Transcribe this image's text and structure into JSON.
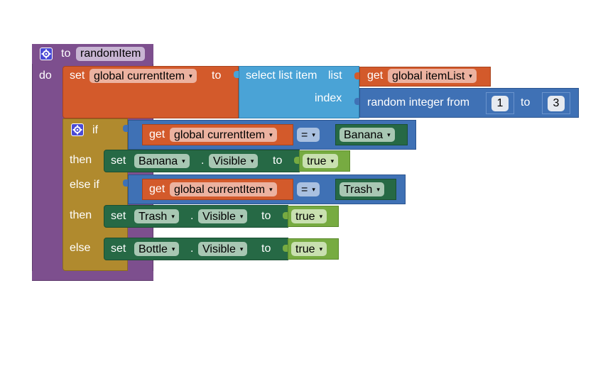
{
  "procedure": {
    "to_label": "to",
    "name": "randomItem",
    "do_label": "do"
  },
  "set_current": {
    "set_label": "set",
    "variable": "global currentItem",
    "to_label": "to"
  },
  "select_list": {
    "label": "select list item",
    "list_label": "list",
    "index_label": "index"
  },
  "get_item_list": {
    "get_label": "get",
    "variable": "global itemList"
  },
  "random_integer": {
    "label": "random integer from",
    "from_value": "1",
    "to_label": "to",
    "to_value": "3"
  },
  "if_block": {
    "if_label": "if",
    "then_label": "then",
    "else_if_label": "else if",
    "then2_label": "then",
    "else_label": "else"
  },
  "cond1": {
    "get_label": "get",
    "variable": "global currentItem",
    "op": "=",
    "value": "Banana"
  },
  "cond2": {
    "get_label": "get",
    "variable": "global currentItem",
    "op": "=",
    "value": "Trash"
  },
  "set_banana": {
    "set_label": "set",
    "component": "Banana",
    "dot": ".",
    "property": "Visible",
    "to_label": "to",
    "value": "true"
  },
  "set_trash": {
    "set_label": "set",
    "component": "Trash",
    "dot": ".",
    "property": "Visible",
    "to_label": "to",
    "value": "true"
  },
  "set_bottle": {
    "set_label": "set",
    "component": "Bottle",
    "dot": ".",
    "property": "Visible",
    "to_label": "to",
    "value": "true"
  },
  "dropdown_glyph": "▾",
  "colors": {
    "procedure": "#7d4f8e",
    "variable_set": "#d35a2b",
    "list": "#4aa3d6",
    "math": "#3f71b5",
    "control": "#b08a2e",
    "component_set": "#266945",
    "logic": "#77ab41"
  }
}
